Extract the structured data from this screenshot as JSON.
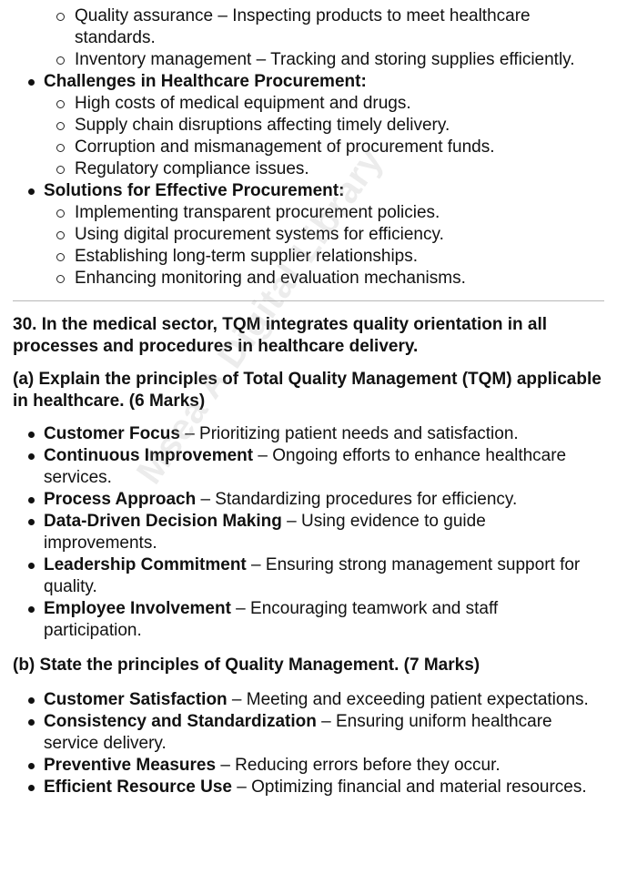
{
  "prev_list": {
    "pre_items": [
      "Quality assurance – Inspecting products to meet healthcare standards.",
      "Inventory management – Tracking and storing supplies efficiently."
    ],
    "challenges": {
      "heading": "Challenges in Healthcare Procurement:",
      "items": [
        "High costs of medical equipment and drugs.",
        "Supply chain disruptions affecting timely delivery.",
        "Corruption and mismanagement of procurement funds.",
        "Regulatory compliance issues."
      ]
    },
    "solutions": {
      "heading": "Solutions for Effective Procurement:",
      "items": [
        "Implementing transparent procurement policies.",
        "Using digital procurement systems for efficiency.",
        "Establishing long-term supplier relationships.",
        "Enhancing monitoring and evaluation mechanisms."
      ]
    }
  },
  "question": {
    "title": "30. In the medical sector, TQM integrates quality orientation in all processes and procedures in healthcare delivery.",
    "part_a": {
      "heading": "(a) Explain the principles of Total Quality Management (TQM) applicable in healthcare. (6 Marks)",
      "items": [
        {
          "term": "Customer Focus",
          "desc": " – Prioritizing patient needs and satisfaction."
        },
        {
          "term": "Continuous Improvement",
          "desc": " – Ongoing efforts to enhance healthcare services."
        },
        {
          "term": "Process Approach",
          "desc": " – Standardizing procedures for efficiency."
        },
        {
          "term": "Data-Driven Decision Making",
          "desc": " – Using evidence to guide improvements."
        },
        {
          "term": "Leadership Commitment",
          "desc": " – Ensuring strong management support for quality."
        },
        {
          "term": "Employee Involvement",
          "desc": " – Encouraging teamwork and staff participation."
        }
      ]
    },
    "part_b": {
      "heading": "(b) State the principles of Quality Management. (7 Marks)",
      "items": [
        {
          "term": "Customer Satisfaction",
          "desc": " – Meeting and exceeding patient expectations."
        },
        {
          "term": "Consistency and Standardization",
          "desc": " – Ensuring uniform healthcare service delivery."
        },
        {
          "term": "Preventive Measures",
          "desc": " – Reducing errors before they occur."
        },
        {
          "term": "Efficient Resource Use",
          "desc": " – Optimizing financial and material resources."
        }
      ]
    }
  },
  "watermark": "Msea A Digital Library"
}
